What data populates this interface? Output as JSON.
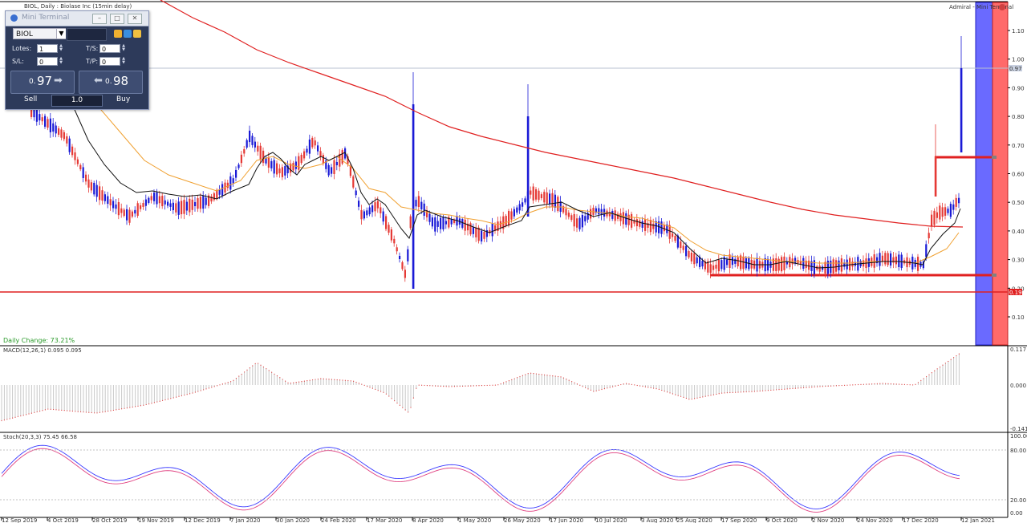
{
  "chart_header": {
    "symbol_title": "BIOL, Daily : Biolase Inc (15min delay)",
    "broker": "Admiral - Mini Terminal",
    "daily_change": "Daily Change: 73.21%",
    "macd_label": "MACD(12,26,1) 0.095 0.095",
    "stoch_label": "Stoch(20,3,3) 75.45 66.58"
  },
  "price_axis": {
    "ticks": [
      "1.10",
      "1.00",
      "0.90",
      "0.80",
      "0.70",
      "0.60",
      "0.50",
      "0.40",
      "0.30",
      "0.20",
      "0.10"
    ],
    "current_price": "0.97",
    "line_price": "0.19"
  },
  "macd_axis": {
    "ticks": [
      "0.117",
      "0.000",
      "-0.141"
    ]
  },
  "stoch_axis": {
    "ticks": [
      "100.00",
      "80.00",
      "20.00",
      "0.00"
    ]
  },
  "date_axis": {
    "labels": [
      "12 Sep 2019",
      "4 Oct 2019",
      "28 Oct 2019",
      "19 Nov 2019",
      "12 Dec 2019",
      "7 Jan 2020",
      "30 Jan 2020",
      "24 Feb 2020",
      "17 Mar 2020",
      "8 Apr 2020",
      "1 May 2020",
      "26 May 2020",
      "17 Jun 2020",
      "10 Jul 2020",
      "3 Aug 2020",
      "25 Aug 2020",
      "17 Sep 2020",
      "9 Oct 2020",
      "2 Nov 2020",
      "24 Nov 2020",
      "17 Dec 2020",
      "12 Jan 2021"
    ]
  },
  "mini_terminal": {
    "title": "Mini Terminal",
    "symbol": "BIOL",
    "lots_label": "Lotes:",
    "lots_value": "1",
    "sl_label": "S/L:",
    "sl_value": "0",
    "ts_label": "T/S:",
    "ts_value": "0",
    "tp_label": "T/P:",
    "tp_value": "0",
    "sell_price_small": "0.",
    "sell_price_big": "97",
    "buy_price_small": "0.",
    "buy_price_big": "98",
    "sell_label": "Sell",
    "buy_label": "Buy",
    "volume": "1.0"
  },
  "colors": {
    "bull_candle": "#e53935",
    "bear_candle": "#1a1ad6",
    "ma_red": "#e02020",
    "ma_orange": "#f0a030",
    "ma_black": "#111111",
    "blue_band": "#6a6aff",
    "red_band": "#ff6a6a"
  }
}
